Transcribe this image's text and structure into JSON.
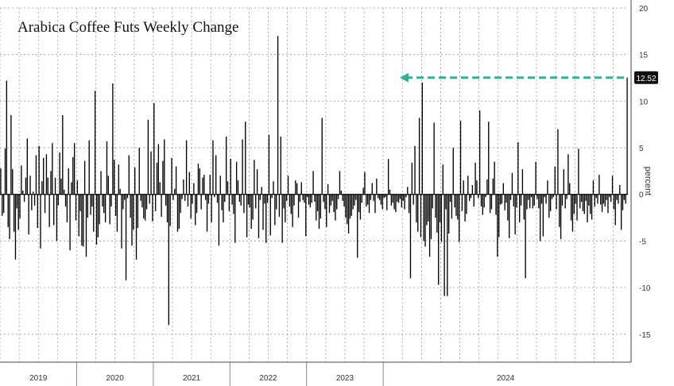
{
  "chart_data": {
    "type": "bar",
    "title": "Arabica Coffee Futs Weekly Change",
    "ylabel": "percent",
    "xlabel": "",
    "ylim": [
      -18,
      20
    ],
    "yticks": [
      20,
      15,
      10,
      5,
      0,
      -5,
      -10,
      -15
    ],
    "grid": true,
    "x_axis_labels": [
      "2019",
      "2020",
      "2021",
      "2022",
      "2023",
      "2024"
    ],
    "year_start_index": [
      0,
      52,
      104,
      156,
      208,
      260
    ],
    "bar_color": "#000000",
    "arrow_color": "#2bb39a",
    "latest_value_label": "12.52",
    "values": [
      2.8,
      -2.3,
      -2.0,
      4.9,
      12.2,
      -3.5,
      -4.8,
      8.5,
      2.7,
      -4.0,
      -7.0,
      -1.5,
      -3.8,
      -2.6,
      3.1,
      0.4,
      -0.8,
      1.8,
      6.0,
      -4.3,
      2.0,
      -1.7,
      0.3,
      -1.2,
      4.2,
      -3.6,
      5.2,
      -5.8,
      1.4,
      3.9,
      -2.0,
      4.3,
      1.8,
      -3.5,
      2.5,
      5.5,
      -3.3,
      1.8,
      -5.0,
      -1.2,
      4.5,
      1.7,
      8.5,
      0.5,
      -1.3,
      -3.0,
      2.8,
      -6.0,
      1.3,
      4.0,
      5.5,
      -2.8,
      1.5,
      -4.5,
      -1.8,
      -5.5,
      -5.6,
      3.6,
      -6.7,
      -2.5,
      5.8,
      -2.2,
      -1.3,
      -4.0,
      11.1,
      -5.4,
      -4.6,
      -3.2,
      2.5,
      -1.3,
      -2.0,
      -3.0,
      5.7,
      2.0,
      -3.2,
      -1.3,
      11.9,
      3.7,
      -2.3,
      -4.0,
      3.2,
      0.6,
      -5.8,
      -1.6,
      -0.6,
      -9.2,
      -0.4,
      4.2,
      -2.5,
      -5.5,
      -3.8,
      2.9,
      -7.0,
      -3.6,
      5.0,
      -0.7,
      -1.4,
      -2.6,
      -2.8,
      -1.6,
      8.0,
      -1.0,
      4.6,
      -2.9,
      9.8,
      -1.8,
      3.4,
      5.4,
      1.3,
      -2.4,
      3.6,
      5.9,
      -1.2,
      -3.0,
      -14.0,
      -3.4,
      3.9,
      -0.6,
      0.6,
      3.0,
      -4.0,
      -3.7,
      -2.0,
      -0.5,
      1.6,
      -0.7,
      5.8,
      -1.3,
      2.4,
      -2.6,
      -1.0,
      1.2,
      -3.3,
      -2.0,
      3.3,
      2.8,
      -1.6,
      1.8,
      2.1,
      -0.6,
      -4.0,
      -1.0,
      2.1,
      -3.0,
      5.8,
      -0.3,
      4.2,
      -0.9,
      -5.5,
      2.0,
      -1.7,
      -3.0,
      -0.8,
      6.2,
      1.4,
      -1.8,
      3.8,
      -1.1,
      -2.1,
      -5.2,
      3.5,
      1.5,
      -0.8,
      -1.2,
      5.9,
      -2.0,
      7.8,
      -4.6,
      -1.1,
      -1.4,
      -3.7,
      -2.7,
      3.7,
      -1.5,
      2.7,
      -4.7,
      -0.6,
      0.8,
      -3.8,
      -1.0,
      -5.2,
      -0.9,
      6.4,
      -4.4,
      -0.4,
      1.4,
      -3.3,
      -1.6,
      17.0,
      -2.4,
      6.2,
      -5.2,
      -1.5,
      -3.0,
      -0.7,
      2.0,
      -1.3,
      -2.1,
      -3.5,
      -1.2,
      1.5,
      1.2,
      -2.5,
      -0.8,
      1.3,
      -0.6,
      -0.9,
      -4.5,
      -0.3,
      -1.1,
      -1.4,
      -0.9,
      2.5,
      -0.8,
      -2.8,
      -1.8,
      -3.7,
      -2.6,
      8.2,
      -0.8,
      -1.6,
      -3.5,
      1.1,
      -2.0,
      -1.2,
      -0.7,
      -1.9,
      -2.8,
      -1.6,
      -0.5,
      2.5,
      0.4,
      -0.7,
      -1.3,
      -2.5,
      -3.2,
      -4.2,
      -2.6,
      -2.3,
      -1.6,
      -1.2,
      -0.6,
      -6.8,
      -1.9,
      -2.7,
      -0.9,
      0.7,
      2.4,
      -1.3,
      -1.1,
      -2.0,
      -0.6,
      1.2,
      -0.7,
      -2.0,
      1.7,
      -0.4,
      -0.6,
      -1.1,
      -1.6,
      -0.4,
      -0.3,
      -1.7,
      3.8,
      0.5,
      -1.2,
      -0.9,
      -1.6,
      -1.9,
      -0.8,
      -0.9,
      -0.5,
      -1.4,
      -0.7,
      -1.6,
      -0.3,
      0.8,
      -2.0,
      -9.0,
      3.4,
      -1.1,
      5.2,
      -3.0,
      -4.0,
      8.2,
      -4.6,
      12.0,
      -5.0,
      -5.6,
      -3.3,
      -2.9,
      -6.7,
      -4.8,
      -1.5,
      7.7,
      -2.5,
      -4.1,
      -9.7,
      -3.0,
      -5.1,
      3.2,
      -10.9,
      -1.6,
      -10.9,
      -4.2,
      -0.8,
      -2.6,
      5.0,
      -1.4,
      -2.3,
      -2.7,
      -5.1,
      7.9,
      -1.8,
      1.5,
      -2.9,
      -2.1,
      2.0,
      -0.7,
      -0.4,
      1.0,
      -1.3,
      3.4,
      1.5,
      -0.4,
      9.0,
      -1.3,
      -2.2,
      -1.4,
      -0.3,
      1.6,
      7.8,
      -2.0,
      -1.6,
      1.7,
      3.5,
      -2.2,
      -6.7,
      -4.6,
      -1.1,
      -1.0,
      1.2,
      -1.7,
      -0.9,
      -2.8,
      -4.7,
      -0.6,
      2.3,
      -1.3,
      -4.3,
      -1.4,
      5.6,
      -3.0,
      -1.2,
      2.7,
      -2.7,
      -9.0,
      -1.6,
      -0.6,
      -1.5,
      -0.3,
      -1.5,
      -1.2,
      3.5,
      -0.5,
      -1.5,
      -5.0,
      -1.0,
      -4.5,
      -0.3,
      -1.0,
      1.5,
      -2.5,
      -1.8,
      -0.5,
      -0.3,
      3.0,
      -1.6,
      7.0,
      -3.5,
      -4.8,
      -1.2,
      2.7,
      -1.5,
      -0.5,
      4.3,
      1.2,
      -2.8,
      -4.0,
      -2.1,
      -1.0,
      -2.8,
      4.9,
      -1.5,
      -0.8,
      -1.8,
      -2.1,
      -0.7,
      -3.0,
      -1.2,
      -2.1,
      -2.7,
      1.5,
      -1.3,
      -0.4,
      -1.0,
      2.1,
      -1.1,
      -1.9,
      -1.0,
      -1.3,
      -0.6,
      -2.0,
      -0.3,
      -0.8,
      2.0,
      -1.6,
      -3.3,
      -0.6,
      -1.0,
      1.0,
      -3.8,
      -1.7,
      -0.6,
      -1.0,
      12.52
    ]
  }
}
